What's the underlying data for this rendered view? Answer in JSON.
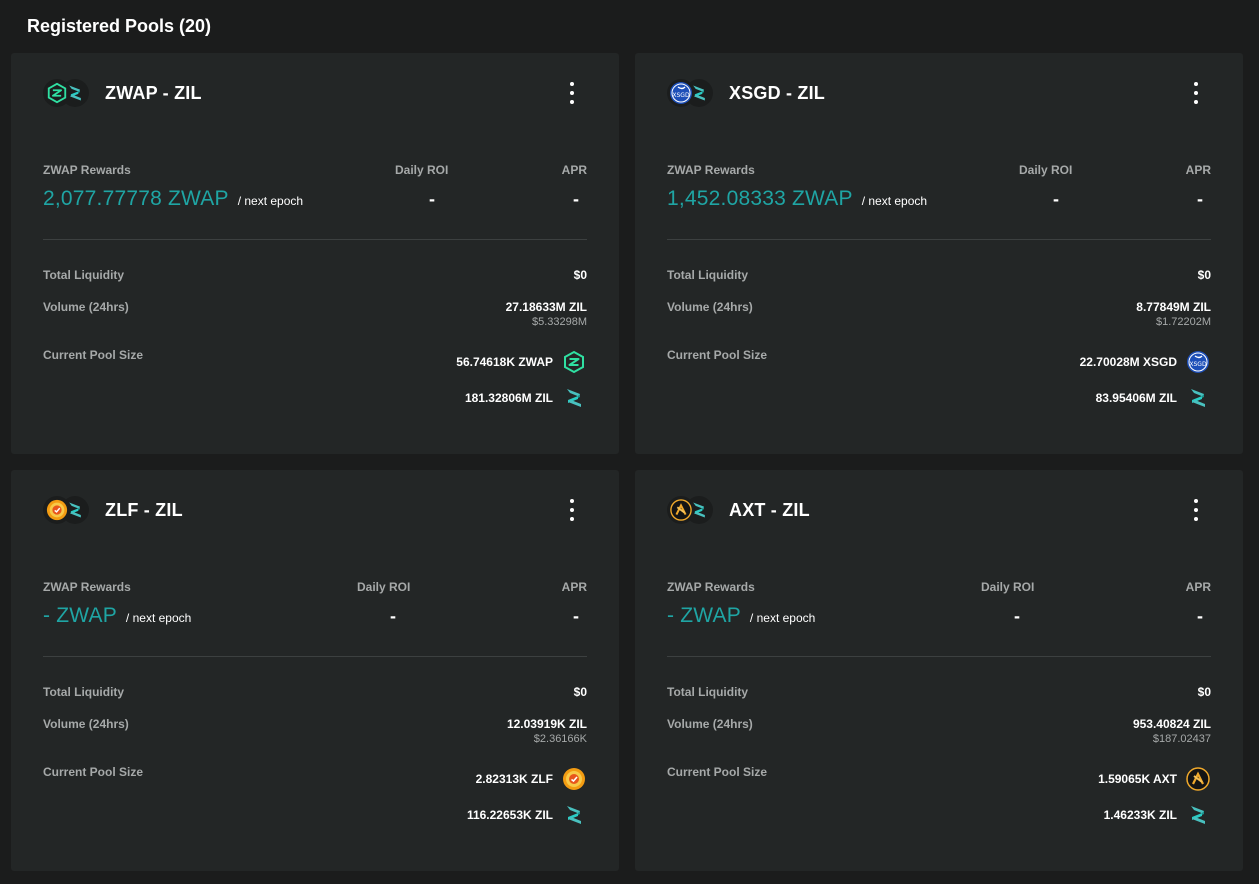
{
  "header": {
    "title": "Registered Pools (20)"
  },
  "labels": {
    "rewards": "ZWAP Rewards",
    "daily_roi": "Daily ROI",
    "apr": "APR",
    "next_epoch": "/ next epoch",
    "total_liquidity": "Total Liquidity",
    "volume": "Volume (24hrs)",
    "pool_size": "Current Pool Size"
  },
  "colors": {
    "accent": "#1fa5a4",
    "background": "#1b1c1c",
    "card": "#232626"
  },
  "pools": [
    {
      "title": "ZWAP - ZIL",
      "token_icon": "zwap-icon",
      "rewards": "2,077.77778 ZWAP",
      "daily_roi": "-",
      "apr": "-",
      "total_liquidity": "$0",
      "volume_zil": "27.18633M ZIL",
      "volume_usd": "$5.33298M",
      "pool_token": "56.74618K ZWAP",
      "pool_zil": "181.32806M ZIL"
    },
    {
      "title": "XSGD - ZIL",
      "token_icon": "xsgd-icon",
      "rewards": "1,452.08333 ZWAP",
      "daily_roi": "-",
      "apr": "-",
      "total_liquidity": "$0",
      "volume_zil": "8.77849M ZIL",
      "volume_usd": "$1.72202M",
      "pool_token": "22.70028M XSGD",
      "pool_zil": "83.95406M ZIL"
    },
    {
      "title": "ZLF - ZIL",
      "token_icon": "zlf-icon",
      "rewards": "- ZWAP",
      "daily_roi": "-",
      "apr": "-",
      "total_liquidity": "$0",
      "volume_zil": "12.03919K ZIL",
      "volume_usd": "$2.36166K",
      "pool_token": "2.82313K ZLF",
      "pool_zil": "116.22653K ZIL"
    },
    {
      "title": "AXT - ZIL",
      "token_icon": "axt-icon",
      "rewards": "- ZWAP",
      "daily_roi": "-",
      "apr": "-",
      "total_liquidity": "$0",
      "volume_zil": "953.40824 ZIL",
      "volume_usd": "$187.02437",
      "pool_token": "1.59065K AXT",
      "pool_zil": "1.46233K ZIL"
    }
  ]
}
